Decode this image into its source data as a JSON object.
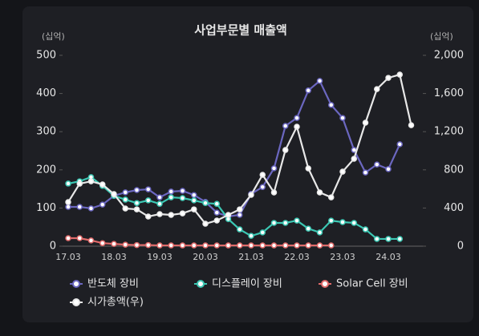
{
  "chart_data": {
    "type": "line",
    "title": "사업부문별 매출액",
    "y_unit": "(십억)",
    "y2_unit": "(십억)",
    "categories": [
      "17.03",
      null,
      null,
      null,
      "18.03",
      null,
      null,
      null,
      "19.03",
      null,
      null,
      null,
      "20.03",
      null,
      null,
      null,
      "21.03",
      null,
      null,
      null,
      "22.03",
      null,
      null,
      null,
      "23.03",
      null,
      null,
      null,
      "24.03",
      null,
      null
    ],
    "ylim": [
      0,
      500
    ],
    "yticks": [
      0,
      100,
      200,
      300,
      400,
      500
    ],
    "y2lim": [
      0,
      2000
    ],
    "y2ticks": [
      0,
      400,
      800,
      {
        "value": 1200,
        "label": "1,200"
      },
      {
        "value": 1600,
        "label": "1,600"
      },
      {
        "value": 2000,
        "label": "2,000"
      }
    ],
    "legend": "bottom",
    "series": [
      {
        "name": "반도체 장비",
        "color": "#6b67c0",
        "values": [
          103,
          103,
          99,
          109,
          132,
          141,
          147,
          149,
          128,
          143,
          145,
          134,
          116,
          88,
          78,
          82,
          137,
          155,
          204,
          315,
          336,
          408,
          433,
          370,
          336,
          252,
          193,
          214,
          202,
          267,
          null
        ]
      },
      {
        "name": "디스플레이 장비",
        "color": "#3cc7b3",
        "values": [
          164,
          170,
          181,
          158,
          132,
          122,
          113,
          120,
          111,
          128,
          126,
          120,
          113,
          111,
          71,
          44,
          27,
          36,
          61,
          61,
          67,
          46,
          36,
          67,
          63,
          61,
          44,
          19,
          19,
          19,
          null
        ]
      },
      {
        "name": "Solar Cell 장비",
        "color": "#e06a6a",
        "values": [
          21,
          21,
          15,
          8,
          6,
          4,
          3,
          3,
          2,
          2,
          2,
          2,
          2,
          2,
          2,
          2,
          2,
          2,
          2,
          2,
          2,
          2,
          2,
          2,
          null,
          null,
          null,
          null,
          null,
          null,
          null
        ]
      },
      {
        "name": "시가총액(우)",
        "color": "#e8e8e8",
        "axis": "y2",
        "values": [
          462,
          655,
          680,
          647,
          546,
          395,
          386,
          311,
          336,
          328,
          344,
          386,
          235,
          269,
          328,
          386,
          538,
          748,
          563,
          1008,
          1252,
          815,
          563,
          512,
          781,
          916,
          1294,
          1646,
          1764,
          1798,
          1268
        ]
      }
    ]
  }
}
